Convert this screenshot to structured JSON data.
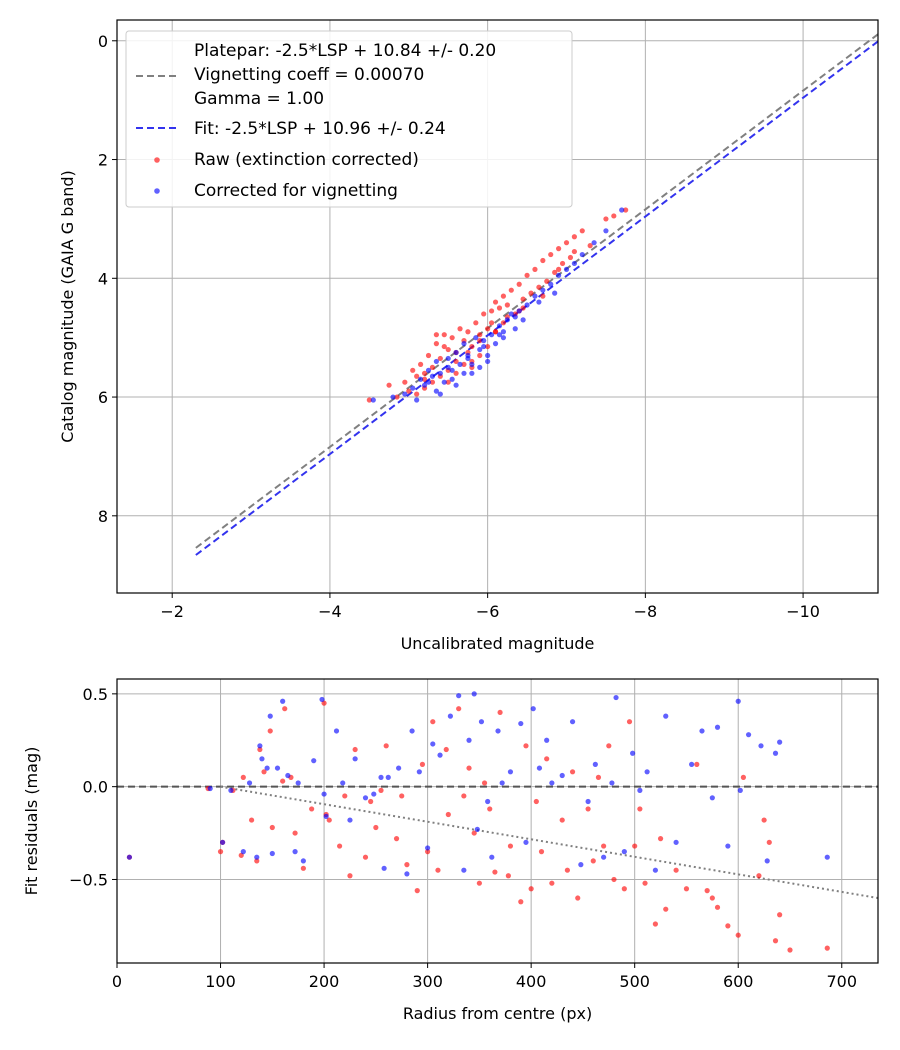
{
  "colors": {
    "raw": "#ff0000",
    "corrected": "#0000ff",
    "platepar_line": "#808080",
    "fit_line": "#3333ee",
    "grid": "#b0b0b0",
    "axes": "#000000",
    "zero_line": "#555555",
    "trend_line": "#808080"
  },
  "chart_data": [
    {
      "id": "calibration",
      "type": "scatter",
      "xlabel": "Uncalibrated magnitude",
      "ylabel": "Catalog magnitude (GAIA G band)",
      "xlim": [
        -1.3,
        -10.95
      ],
      "ylim": [
        9.3,
        -0.35
      ],
      "xticks": [
        -2,
        -4,
        -6,
        -8,
        -10
      ],
      "xtick_labels": [
        "−2",
        "−4",
        "−6",
        "−8",
        "−10"
      ],
      "yticks": [
        0,
        2,
        4,
        6,
        8
      ],
      "ytick_labels": [
        "0",
        "2",
        "4",
        "6",
        "8"
      ],
      "grid": true,
      "legend": {
        "location": "upper-left",
        "entries": [
          {
            "kind": "line",
            "style": "dashed",
            "color_key": "platepar_line",
            "lines": [
              "Platepar: -2.5*LSP + 10.84 +/- 0.20",
              "Vignetting coeff = 0.00070",
              "Gamma = 1.00"
            ]
          },
          {
            "kind": "line",
            "style": "dashed",
            "color_key": "fit_line",
            "lines": [
              "Fit: -2.5*LSP + 10.96 +/- 0.24"
            ]
          },
          {
            "kind": "marker",
            "color_key": "raw",
            "lines": [
              "Raw (extinction corrected)"
            ]
          },
          {
            "kind": "marker",
            "color_key": "corrected",
            "lines": [
              "Corrected for vignetting"
            ]
          }
        ]
      },
      "lines": [
        {
          "name": "Platepar",
          "slope": -2.5,
          "intercept": 10.84,
          "color_key": "platepar_line",
          "style": "dashed"
        },
        {
          "name": "Fit",
          "slope": -2.5,
          "intercept": 10.96,
          "color_key": "fit_line",
          "style": "dashed"
        }
      ],
      "series": [
        {
          "name": "Raw (extinction corrected)",
          "color_key": "raw",
          "x": [
            -4.5,
            -4.75,
            -4.85,
            -4.95,
            -5.0,
            -5.05,
            -5.1,
            -5.1,
            -5.15,
            -5.2,
            -5.2,
            -5.25,
            -5.3,
            -5.3,
            -5.35,
            -5.4,
            -5.4,
            -5.45,
            -5.5,
            -5.5,
            -5.55,
            -5.6,
            -5.6,
            -5.65,
            -5.7,
            -5.7,
            -5.75,
            -5.8,
            -5.8,
            -5.85,
            -5.9,
            -5.9,
            -5.95,
            -6.0,
            -6.0,
            -6.05,
            -6.1,
            -6.1,
            -6.15,
            -6.2,
            -6.2,
            -6.25,
            -6.3,
            -6.35,
            -6.4,
            -6.45,
            -6.5,
            -6.55,
            -6.6,
            -6.65,
            -6.7,
            -6.75,
            -6.8,
            -6.85,
            -6.9,
            -6.95,
            -7.0,
            -7.05,
            -7.1,
            -7.2,
            -7.3,
            -7.5,
            -7.6,
            -7.75,
            -5.35,
            -5.45,
            -5.6,
            -5.75,
            -5.9,
            -6.05,
            -6.25,
            -6.45,
            -6.7,
            -6.9,
            -7.1,
            -5.2,
            -5.5,
            -5.8,
            -6.1,
            -6.4
          ],
          "y": [
            6.05,
            5.8,
            6.0,
            5.75,
            5.9,
            5.55,
            5.65,
            5.95,
            5.45,
            5.6,
            5.85,
            5.3,
            5.5,
            5.75,
            5.1,
            5.35,
            5.65,
            4.95,
            5.2,
            5.55,
            5.0,
            5.25,
            5.6,
            4.85,
            5.05,
            5.45,
            4.9,
            5.15,
            5.4,
            4.75,
            4.95,
            5.3,
            4.6,
            4.85,
            5.15,
            4.55,
            4.4,
            4.9,
            4.5,
            4.3,
            4.75,
            4.45,
            4.2,
            4.6,
            4.1,
            4.35,
            3.95,
            4.25,
            3.85,
            4.15,
            3.7,
            4.05,
            3.6,
            3.9,
            3.5,
            3.75,
            3.4,
            3.65,
            3.3,
            3.2,
            3.45,
            3.0,
            2.95,
            2.85,
            4.95,
            5.15,
            5.4,
            5.25,
            5.05,
            4.75,
            4.65,
            4.5,
            4.3,
            3.85,
            3.55,
            5.7,
            5.75,
            5.5,
            4.9,
            4.55
          ]
        },
        {
          "name": "Corrected for vignetting",
          "color_key": "corrected",
          "x": [
            -4.55,
            -4.8,
            -4.95,
            -5.05,
            -5.1,
            -5.15,
            -5.2,
            -5.25,
            -5.3,
            -5.35,
            -5.35,
            -5.4,
            -5.45,
            -5.5,
            -5.5,
            -5.55,
            -5.6,
            -5.65,
            -5.7,
            -5.7,
            -5.75,
            -5.8,
            -5.85,
            -5.9,
            -5.9,
            -5.95,
            -6.0,
            -6.05,
            -6.1,
            -6.15,
            -6.2,
            -6.25,
            -6.3,
            -6.35,
            -6.4,
            -6.5,
            -6.6,
            -6.7,
            -6.8,
            -6.9,
            -7.0,
            -7.1,
            -7.2,
            -7.35,
            -7.5,
            -7.7,
            -5.4,
            -5.6,
            -5.8,
            -6.0,
            -6.2,
            -6.45,
            -6.65,
            -6.85,
            -5.25,
            -5.55,
            -5.75,
            -5.95,
            -6.15,
            -6.35
          ],
          "y": [
            6.05,
            6.0,
            5.95,
            5.85,
            6.05,
            5.7,
            5.8,
            5.55,
            5.65,
            5.9,
            5.4,
            5.6,
            5.75,
            5.35,
            5.5,
            5.7,
            5.25,
            5.45,
            5.6,
            5.1,
            5.3,
            5.45,
            5.0,
            5.2,
            5.5,
            5.05,
            5.3,
            4.95,
            5.1,
            4.8,
            5.0,
            4.7,
            4.6,
            4.85,
            4.55,
            4.45,
            4.3,
            4.2,
            4.1,
            3.95,
            3.85,
            3.75,
            3.6,
            3.4,
            3.2,
            2.85,
            5.95,
            5.8,
            5.6,
            5.4,
            4.9,
            4.7,
            4.4,
            4.25,
            5.75,
            5.55,
            5.35,
            5.15,
            4.95,
            4.65
          ]
        }
      ]
    },
    {
      "id": "residuals",
      "type": "scatter",
      "xlabel": "Radius from centre (px)",
      "ylabel": "Fit residuals (mag)",
      "xlim": [
        0,
        735
      ],
      "ylim": [
        -0.95,
        0.58
      ],
      "xticks": [
        0,
        100,
        200,
        300,
        400,
        500,
        600,
        700
      ],
      "xtick_labels": [
        "0",
        "100",
        "200",
        "300",
        "400",
        "500",
        "600",
        "700"
      ],
      "yticks": [
        0.5,
        0.0,
        -0.5
      ],
      "ytick_labels": [
        "0.5",
        "0.0",
        "−0.5"
      ],
      "grid": true,
      "reference_lines": [
        {
          "name": "zero",
          "y": 0.0,
          "color_key": "zero_line",
          "style": "dashed"
        },
        {
          "name": "vignetting trend",
          "x0": 100,
          "y0": 0.0,
          "x1": 735,
          "y1": -0.6,
          "color_key": "trend_line",
          "style": "dotted"
        }
      ],
      "series": [
        {
          "name": "Raw (extinction corrected)",
          "color_key": "raw",
          "x": [
            12,
            88,
            100,
            102,
            112,
            120,
            122,
            130,
            135,
            138,
            142,
            148,
            150,
            160,
            162,
            168,
            172,
            180,
            188,
            200,
            202,
            205,
            215,
            220,
            225,
            230,
            240,
            245,
            250,
            255,
            260,
            270,
            275,
            280,
            290,
            295,
            300,
            305,
            310,
            318,
            320,
            330,
            335,
            340,
            345,
            350,
            355,
            360,
            365,
            370,
            378,
            380,
            390,
            395,
            400,
            405,
            410,
            415,
            420,
            430,
            435,
            440,
            445,
            455,
            460,
            465,
            470,
            475,
            480,
            490,
            495,
            500,
            505,
            510,
            520,
            525,
            530,
            540,
            550,
            560,
            570,
            575,
            580,
            590,
            600,
            605,
            620,
            625,
            630,
            636,
            640,
            650,
            686
          ],
          "y": [
            -0.38,
            -0.01,
            -0.35,
            -0.3,
            -0.02,
            -0.37,
            0.05,
            -0.18,
            -0.4,
            0.2,
            0.08,
            0.3,
            -0.22,
            0.03,
            0.42,
            0.05,
            -0.25,
            -0.44,
            -0.12,
            0.45,
            -0.15,
            -0.18,
            -0.32,
            -0.05,
            -0.48,
            0.2,
            -0.38,
            -0.08,
            -0.22,
            -0.02,
            0.22,
            -0.28,
            -0.05,
            -0.42,
            -0.56,
            0.12,
            -0.35,
            0.35,
            -0.45,
            0.2,
            -0.15,
            0.42,
            -0.05,
            0.1,
            -0.25,
            -0.52,
            0.02,
            -0.12,
            -0.46,
            0.4,
            -0.48,
            -0.32,
            -0.62,
            0.22,
            -0.55,
            -0.08,
            -0.35,
            0.15,
            -0.52,
            -0.18,
            -0.45,
            0.08,
            -0.6,
            -0.12,
            -0.4,
            0.05,
            -0.32,
            0.22,
            -0.5,
            -0.55,
            0.35,
            -0.32,
            -0.12,
            -0.52,
            -0.74,
            -0.28,
            -0.66,
            -0.45,
            -0.55,
            0.12,
            -0.56,
            -0.6,
            -0.65,
            -0.75,
            -0.8,
            0.05,
            -0.48,
            -0.18,
            -0.3,
            -0.83,
            -0.69,
            -0.88,
            -0.87
          ]
        },
        {
          "name": "Corrected for vignetting",
          "color_key": "corrected",
          "x": [
            12,
            90,
            102,
            110,
            122,
            128,
            135,
            138,
            140,
            145,
            148,
            150,
            155,
            160,
            165,
            172,
            175,
            180,
            190,
            198,
            200,
            202,
            212,
            218,
            225,
            230,
            240,
            248,
            255,
            258,
            262,
            272,
            280,
            285,
            292,
            300,
            305,
            312,
            322,
            330,
            335,
            340,
            345,
            348,
            352,
            358,
            362,
            368,
            372,
            380,
            390,
            395,
            402,
            408,
            415,
            420,
            430,
            440,
            448,
            455,
            462,
            470,
            478,
            482,
            490,
            498,
            505,
            512,
            520,
            530,
            540,
            555,
            565,
            575,
            580,
            590,
            600,
            602,
            610,
            622,
            628,
            636,
            640,
            686
          ],
          "y": [
            -0.38,
            -0.01,
            -0.3,
            -0.02,
            -0.35,
            0.02,
            -0.38,
            0.22,
            0.15,
            0.1,
            0.38,
            -0.36,
            0.1,
            0.46,
            0.06,
            -0.35,
            0.02,
            -0.4,
            0.14,
            0.47,
            -0.04,
            -0.16,
            0.3,
            0.02,
            -0.18,
            0.15,
            -0.06,
            -0.04,
            0.05,
            -0.44,
            0.05,
            0.1,
            -0.47,
            0.3,
            0.08,
            -0.33,
            0.23,
            0.17,
            0.38,
            0.49,
            -0.45,
            0.25,
            0.5,
            -0.23,
            0.35,
            -0.08,
            -0.38,
            0.3,
            0.02,
            0.08,
            0.34,
            -0.3,
            0.42,
            0.1,
            0.25,
            0.02,
            0.06,
            0.35,
            -0.42,
            -0.08,
            0.12,
            -0.38,
            0.02,
            0.48,
            -0.35,
            0.18,
            -0.02,
            0.08,
            -0.45,
            0.38,
            -0.3,
            0.12,
            0.3,
            -0.06,
            0.32,
            -0.32,
            0.46,
            -0.02,
            0.28,
            0.22,
            -0.4,
            0.18,
            0.24,
            -0.38
          ]
        }
      ]
    }
  ]
}
